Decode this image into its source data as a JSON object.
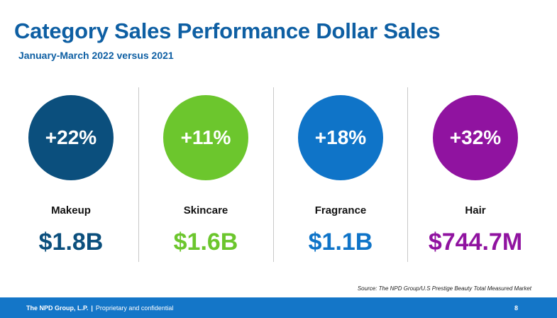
{
  "slide": {
    "title": "Category Sales Performance Dollar Sales",
    "subtitle": "January-March 2022 versus 2021",
    "source": "Source: The NPD Group/U.S Prestige Beauty Total Measured Market"
  },
  "categories": [
    {
      "name": "Makeup",
      "change": "+22%",
      "sales": "$1.8B",
      "color": "#0b4f7d"
    },
    {
      "name": "Skincare",
      "change": "+11%",
      "sales": "$1.6B",
      "color": "#6cc62d"
    },
    {
      "name": "Fragrance",
      "change": "+18%",
      "sales": "$1.1B",
      "color": "#0f74c8"
    },
    {
      "name": "Hair",
      "change": "+32%",
      "sales": "$744.7M",
      "color": "#9013a0"
    }
  ],
  "footer": {
    "company": "The NPD Group, L.P.",
    "separator": "|",
    "tagline": "Proprietary and confidential",
    "page_number": "8",
    "background_color": "#1476c8"
  }
}
